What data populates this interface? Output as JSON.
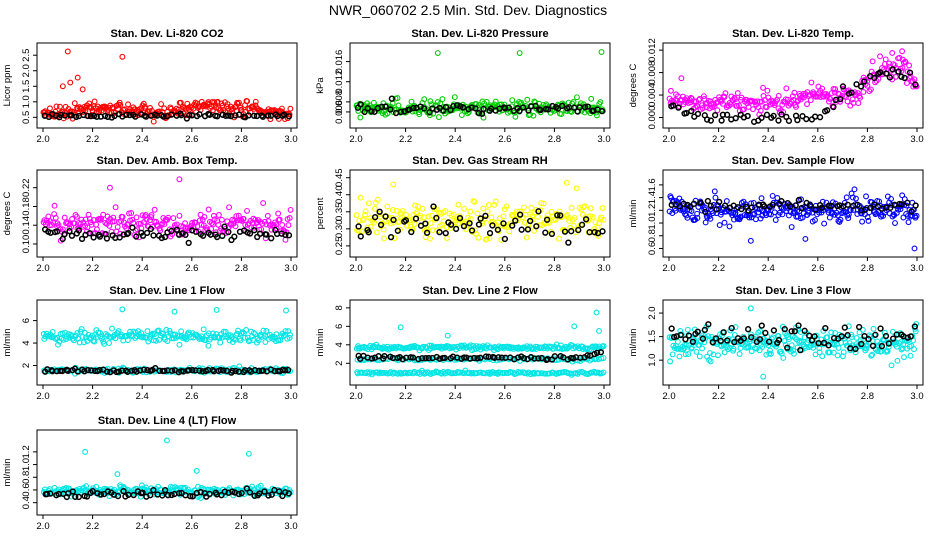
{
  "page_title": "NWR_060702  2.5 Min. Std. Dev. Diagnostics",
  "colors": {
    "ref": "#000000"
  },
  "chart_data": [
    {
      "id": "co2",
      "type": "scatter",
      "title": "Stan. Dev. Li-820 CO2",
      "ylabel": "Licor ppm",
      "color": "#ff0000",
      "xlim": [
        2.0,
        3.0
      ],
      "ylim": [
        0.35,
        2.7
      ],
      "xticks": [
        "2.0",
        "2.2",
        "2.4",
        "2.6",
        "2.8",
        "3.0"
      ],
      "yticks": [
        {
          "v": 0.5,
          "label": "0.5"
        },
        {
          "v": 1.0,
          "label": "1.0"
        },
        {
          "v": 1.5,
          "label": "1.5"
        },
        {
          "v": 2.0,
          "label": "2.0"
        },
        {
          "v": 2.5,
          "label": "2.5"
        }
      ],
      "series": [
        {
          "name": "sample",
          "color": "#ff0000",
          "n": 260,
          "base": 0.68,
          "spread": 0.18,
          "trend": [
            [
              2.0,
              0.68
            ],
            [
              2.3,
              0.8
            ],
            [
              2.45,
              0.6
            ],
            [
              2.65,
              0.9
            ],
            [
              2.8,
              0.75
            ],
            [
              3.0,
              0.6
            ]
          ],
          "outliers": [
            [
              2.1,
              2.62
            ],
            [
              2.32,
              2.45
            ],
            [
              2.11,
              1.62
            ],
            [
              2.14,
              1.78
            ],
            [
              2.16,
              1.4
            ],
            [
              2.08,
              1.5
            ]
          ]
        },
        {
          "name": "reference",
          "color": "#000000",
          "n": 70,
          "base": 0.55,
          "spread": 0.05,
          "trend": null,
          "outliers": []
        }
      ]
    },
    {
      "id": "pressure",
      "type": "scatter",
      "title": "Stan. Dev. Li-820 Pressure",
      "ylabel": "kPa",
      "color": "#00cc00",
      "xlim": [
        2.0,
        3.0
      ],
      "ylim": [
        0.004,
        0.0185
      ],
      "xticks": [
        "2.0",
        "2.2",
        "2.4",
        "2.6",
        "2.8",
        "3.0"
      ],
      "yticks": [
        {
          "v": 0.006,
          "label": "0.006"
        },
        {
          "v": 0.008,
          "label": "0.008"
        },
        {
          "v": 0.012,
          "label": "0.012"
        },
        {
          "v": 0.016,
          "label": "0.016"
        }
      ],
      "series": [
        {
          "name": "sample",
          "color": "#00cc00",
          "n": 240,
          "base": 0.0068,
          "spread": 0.0012,
          "trend": null,
          "outliers": [
            [
              2.33,
              0.0177
            ],
            [
              2.66,
              0.0177
            ],
            [
              2.99,
              0.0179
            ]
          ]
        },
        {
          "name": "reference",
          "color": "#000000",
          "n": 70,
          "base": 0.0066,
          "spread": 0.0008,
          "trend": null,
          "outliers": []
        }
      ]
    },
    {
      "id": "temp",
      "type": "scatter",
      "title": "Stan. Dev. Li-820 Temp.",
      "ylabel": "degrees C",
      "color": "#ff00ff",
      "xlim": [
        2.0,
        3.0
      ],
      "ylim": [
        -0.0008,
        0.0122
      ],
      "xticks": [
        "2.0",
        "2.2",
        "2.4",
        "2.6",
        "2.8",
        "3.0"
      ],
      "yticks": [
        {
          "v": 0.0,
          "label": "0.000"
        },
        {
          "v": 0.004,
          "label": "0.004"
        },
        {
          "v": 0.008,
          "label": "0.008"
        },
        {
          "v": 0.012,
          "label": "0.012"
        }
      ],
      "series": [
        {
          "name": "sample",
          "color": "#ff00ff",
          "n": 260,
          "base": 0.003,
          "spread": 0.0015,
          "trend": [
            [
              2.0,
              0.004
            ],
            [
              2.1,
              0.0025
            ],
            [
              2.5,
              0.003
            ],
            [
              2.6,
              0.0045
            ],
            [
              2.75,
              0.004
            ],
            [
              2.85,
              0.0085
            ],
            [
              2.95,
              0.009
            ],
            [
              3.0,
              0.006
            ]
          ],
          "outliers": [
            [
              2.05,
              0.007
            ],
            [
              2.9,
              0.0115
            ],
            [
              2.94,
              0.0118
            ]
          ]
        },
        {
          "name": "reference",
          "color": "#000000",
          "n": 60,
          "base": 0.0025,
          "spread": 0.001,
          "trend": [
            [
              2.0,
              0.003
            ],
            [
              2.1,
              0.0
            ],
            [
              2.6,
              0.0
            ],
            [
              2.7,
              0.004
            ],
            [
              2.85,
              0.008
            ],
            [
              3.0,
              0.007
            ]
          ],
          "outliers": []
        }
      ]
    },
    {
      "id": "boxtemp",
      "type": "scatter",
      "title": "Stan. Dev. Amb. Box Temp.",
      "ylabel": "degrees C",
      "color": "#ff00ff",
      "xlim": [
        2.0,
        3.0
      ],
      "ylim": [
        0.085,
        0.245
      ],
      "xticks": [
        "2.0",
        "2.2",
        "2.4",
        "2.6",
        "2.8",
        "3.0"
      ],
      "yticks": [
        {
          "v": 0.1,
          "label": "0.10"
        },
        {
          "v": 0.14,
          "label": "0.14"
        },
        {
          "v": 0.18,
          "label": "0.18"
        },
        {
          "v": 0.22,
          "label": "0.22"
        }
      ],
      "series": [
        {
          "name": "sample",
          "color": "#ff00ff",
          "n": 240,
          "base": 0.143,
          "spread": 0.022,
          "trend": null,
          "outliers": [
            [
              2.55,
              0.238
            ],
            [
              2.27,
              0.22
            ]
          ]
        },
        {
          "name": "reference",
          "color": "#000000",
          "n": 70,
          "base": 0.12,
          "spread": 0.01,
          "trend": null,
          "outliers": []
        }
      ]
    },
    {
      "id": "rh",
      "type": "scatter",
      "title": "Stan. Dev. Gas Stream RH",
      "ylabel": "percent",
      "color": "#ffff00",
      "xlim": [
        2.0,
        3.0
      ],
      "ylim": [
        0.235,
        0.455
      ],
      "xticks": [
        "2.0",
        "2.2",
        "2.4",
        "2.6",
        "2.8",
        "3.0"
      ],
      "yticks": [
        {
          "v": 0.25,
          "label": "0.25"
        },
        {
          "v": 0.3,
          "label": "0.30"
        },
        {
          "v": 0.35,
          "label": "0.35"
        },
        {
          "v": 0.4,
          "label": "0.40"
        },
        {
          "v": 0.45,
          "label": "0.45"
        }
      ],
      "series": [
        {
          "name": "sample",
          "color": "#ffff00",
          "n": 240,
          "base": 0.325,
          "spread": 0.04,
          "trend": null,
          "outliers": [
            [
              2.15,
              0.43
            ],
            [
              2.85,
              0.435
            ]
          ]
        },
        {
          "name": "reference",
          "color": "#000000",
          "n": 60,
          "base": 0.31,
          "spread": 0.035,
          "trend": null,
          "outliers": []
        }
      ]
    },
    {
      "id": "sampleflow",
      "type": "scatter",
      "title": "Stan. Dev. Sample Flow",
      "ylabel": "ml/min",
      "color": "#0000ff",
      "xlim": [
        2.0,
        3.0
      ],
      "ylim": [
        0.56,
        1.74
      ],
      "xticks": [
        "2.0",
        "2.2",
        "2.4",
        "2.6",
        "2.8",
        "3.0"
      ],
      "yticks": [
        {
          "v": 0.6,
          "label": "0.6"
        },
        {
          "v": 0.8,
          "label": "0.8"
        },
        {
          "v": 1.0,
          "label": "1.0"
        },
        {
          "v": 1.2,
          "label": "1.2"
        },
        {
          "v": 1.4,
          "label": "1.4"
        },
        {
          "v": 1.6,
          "label": "1.6"
        }
      ],
      "series": [
        {
          "name": "sample",
          "color": "#0000ff",
          "n": 280,
          "base": 1.2,
          "spread": 0.17,
          "trend": null,
          "outliers": [
            [
              2.99,
              0.6
            ],
            [
              2.33,
              0.72
            ],
            [
              2.55,
              0.75
            ]
          ]
        },
        {
          "name": "reference",
          "color": "#000000",
          "n": 60,
          "base": 1.27,
          "spread": 0.07,
          "trend": null,
          "outliers": []
        }
      ]
    },
    {
      "id": "line1",
      "type": "scatter",
      "title": "Stan. Dev. Line 1 Flow",
      "ylabel": "ml/min",
      "color": "#00e5e5",
      "xlim": [
        2.0,
        3.0
      ],
      "ylim": [
        0.8,
        7.3
      ],
      "xticks": [
        "2.0",
        "2.2",
        "2.4",
        "2.6",
        "2.8",
        "3.0"
      ],
      "yticks": [
        {
          "v": 2,
          "label": "2"
        },
        {
          "v": 4,
          "label": "4"
        },
        {
          "v": 6,
          "label": "6"
        }
      ],
      "series": [
        {
          "name": "sample-upper",
          "color": "#00e5e5",
          "n": 220,
          "base": 4.6,
          "spread": 0.5,
          "trend": null,
          "outliers": [
            [
              2.32,
              7.0
            ],
            [
              2.7,
              6.95
            ],
            [
              2.98,
              6.9
            ],
            [
              2.53,
              6.8
            ]
          ]
        },
        {
          "name": "sample-lower",
          "color": "#00e5e5",
          "n": 160,
          "base": 1.55,
          "spread": 0.18,
          "trend": null,
          "outliers": []
        },
        {
          "name": "reference",
          "color": "#000000",
          "n": 80,
          "base": 1.55,
          "spread": 0.12,
          "trend": null,
          "outliers": []
        }
      ]
    },
    {
      "id": "line2",
      "type": "scatter",
      "title": "Stan. Dev. Line 2 Flow",
      "ylabel": "ml/min",
      "color": "#00e5e5",
      "xlim": [
        2.0,
        3.0
      ],
      "ylim": [
        0.3,
        8.2
      ],
      "xticks": [
        "2.0",
        "2.2",
        "2.4",
        "2.6",
        "2.8",
        "3.0"
      ],
      "yticks": [
        {
          "v": 2,
          "label": "2"
        },
        {
          "v": 4,
          "label": "4"
        },
        {
          "v": 6,
          "label": "6"
        },
        {
          "v": 8,
          "label": "8"
        }
      ],
      "series": [
        {
          "name": "sample-upper",
          "color": "#00e5e5",
          "n": 200,
          "base": 3.7,
          "spread": 0.2,
          "trend": null,
          "outliers": [
            [
              2.18,
              5.9
            ],
            [
              2.37,
              5.0
            ],
            [
              2.88,
              6.0
            ],
            [
              2.97,
              7.5
            ],
            [
              2.98,
              5.5
            ]
          ]
        },
        {
          "name": "sample-mid",
          "color": "#00e5e5",
          "n": 120,
          "base": 2.45,
          "spread": 0.15,
          "trend": null,
          "outliers": []
        },
        {
          "name": "sample-lower",
          "color": "#00e5e5",
          "n": 160,
          "base": 0.95,
          "spread": 0.12,
          "trend": null,
          "outliers": []
        },
        {
          "name": "reference",
          "color": "#000000",
          "n": 70,
          "base": 2.6,
          "spread": 0.15,
          "trend": [
            [
              2.0,
              2.6
            ],
            [
              2.9,
              2.6
            ],
            [
              3.0,
              3.3
            ]
          ],
          "outliers": []
        }
      ]
    },
    {
      "id": "line3",
      "type": "scatter",
      "title": "Stan. Dev. Line 3 Flow",
      "ylabel": "ml/min",
      "color": "#00e5e5",
      "xlim": [
        2.0,
        3.0
      ],
      "ylim": [
        0.6,
        2.15
      ],
      "xticks": [
        "2.0",
        "2.2",
        "2.4",
        "2.6",
        "2.8",
        "3.0"
      ],
      "yticks": [
        {
          "v": 1.0,
          "label": "1.0"
        },
        {
          "v": 1.5,
          "label": "1.5"
        },
        {
          "v": 2.0,
          "label": "2.0"
        }
      ],
      "series": [
        {
          "name": "sample",
          "color": "#00e5e5",
          "n": 300,
          "base": 1.35,
          "spread": 0.25,
          "trend": null,
          "outliers": [
            [
              2.38,
              0.65
            ],
            [
              2.33,
              2.1
            ]
          ]
        },
        {
          "name": "reference",
          "color": "#000000",
          "n": 70,
          "base": 1.5,
          "spread": 0.18,
          "trend": null,
          "outliers": []
        }
      ]
    },
    {
      "id": "line4",
      "type": "scatter",
      "title": "Stan. Dev. Line 4 (LT) Flow",
      "ylabel": "ml/min",
      "color": "#00e5e5",
      "xlim": [
        2.0,
        3.0
      ],
      "ylim": [
        0.3,
        1.45
      ],
      "xticks": [
        "2.0",
        "2.2",
        "2.4",
        "2.6",
        "2.8",
        "3.0"
      ],
      "yticks": [
        {
          "v": 0.4,
          "label": "0.4"
        },
        {
          "v": 0.6,
          "label": "0.6"
        },
        {
          "v": 0.8,
          "label": "0.8"
        },
        {
          "v": 1.0,
          "label": "1.0"
        },
        {
          "v": 1.2,
          "label": "1.2"
        }
      ],
      "series": [
        {
          "name": "sample",
          "color": "#00e5e5",
          "n": 240,
          "base": 0.58,
          "spread": 0.06,
          "trend": null,
          "outliers": [
            [
              2.5,
              1.38
            ],
            [
              2.17,
              1.2
            ],
            [
              2.83,
              1.17
            ],
            [
              2.62,
              0.9
            ],
            [
              2.3,
              0.85
            ]
          ]
        },
        {
          "name": "reference",
          "color": "#000000",
          "n": 70,
          "base": 0.54,
          "spread": 0.06,
          "trend": null,
          "outliers": []
        }
      ]
    }
  ]
}
